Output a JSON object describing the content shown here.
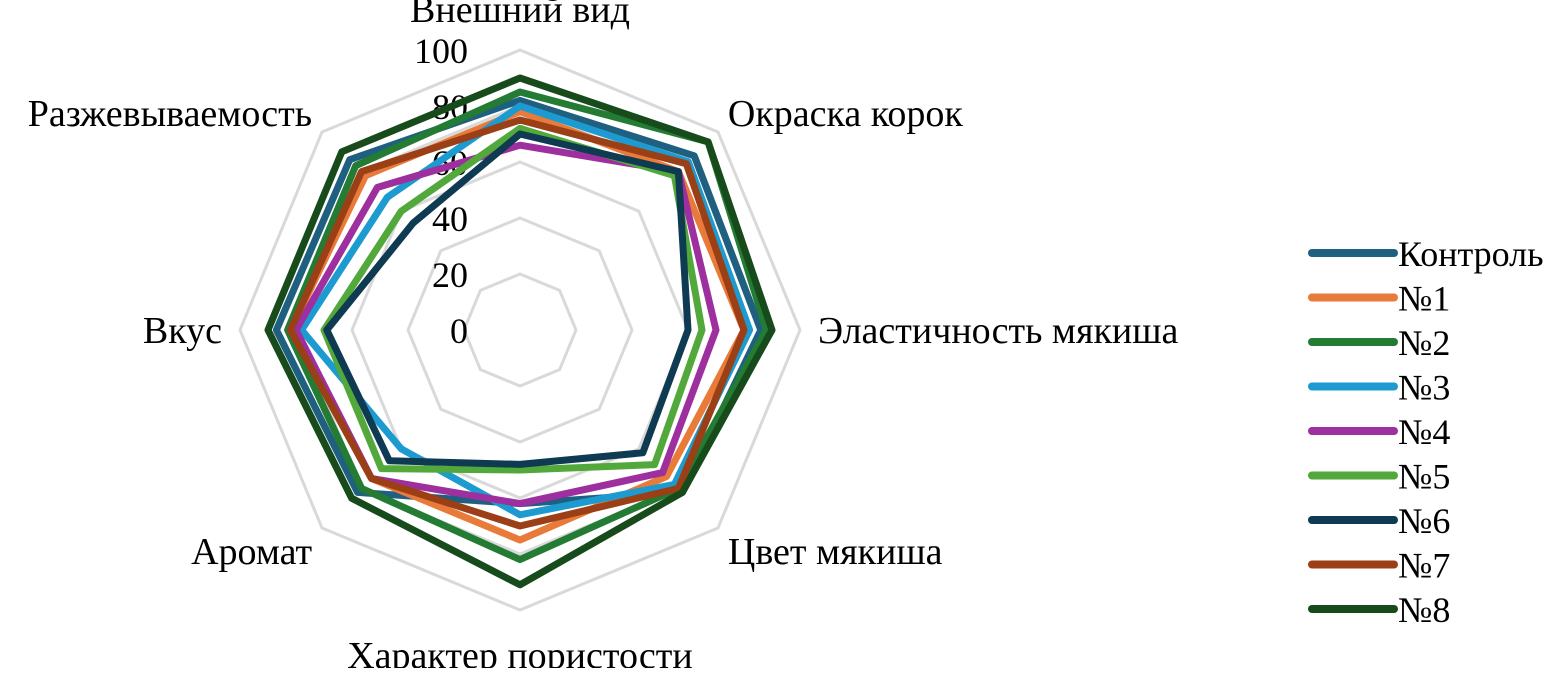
{
  "chart_data": {
    "type": "radar",
    "axes": [
      "Внешний вид",
      "Окраска корок",
      "Эластичность мякиша",
      "Цвет мякиша",
      "Характер пористости",
      "Аромат",
      "Вкус",
      "Разжевываемость"
    ],
    "r_ticks": [
      "0",
      "20",
      "40",
      "60",
      "80",
      "100"
    ],
    "r_range": [
      0,
      100
    ],
    "grid": true,
    "legend_position": "right",
    "series": [
      {
        "name": "Контроль",
        "color": "#1f5f80",
        "values": [
          82,
          88,
          86,
          82,
          62,
          82,
          87,
          86
        ]
      },
      {
        "name": "№1",
        "color": "#e87a3a",
        "values": [
          78,
          80,
          80,
          74,
          75,
          75,
          82,
          78
        ]
      },
      {
        "name": "№2",
        "color": "#237b34",
        "values": [
          85,
          95,
          88,
          80,
          82,
          80,
          83,
          83
        ]
      },
      {
        "name": "№3",
        "color": "#1d9bd1",
        "values": [
          80,
          85,
          82,
          78,
          66,
          60,
          78,
          67
        ]
      },
      {
        "name": "№4",
        "color": "#9d2f9e",
        "values": [
          66,
          80,
          70,
          72,
          62,
          75,
          80,
          72
        ]
      },
      {
        "name": "№5",
        "color": "#52a83a",
        "values": [
          72,
          78,
          65,
          68,
          50,
          70,
          70,
          60
        ]
      },
      {
        "name": "№6",
        "color": "#0e3a52",
        "values": [
          70,
          80,
          60,
          62,
          48,
          66,
          69,
          54
        ]
      },
      {
        "name": "№7",
        "color": "#9b3f16",
        "values": [
          75,
          84,
          80,
          80,
          70,
          75,
          82,
          80
        ]
      },
      {
        "name": "№8",
        "color": "#184b1c",
        "values": [
          90,
          95,
          90,
          82,
          91,
          85,
          90,
          90
        ]
      }
    ]
  }
}
